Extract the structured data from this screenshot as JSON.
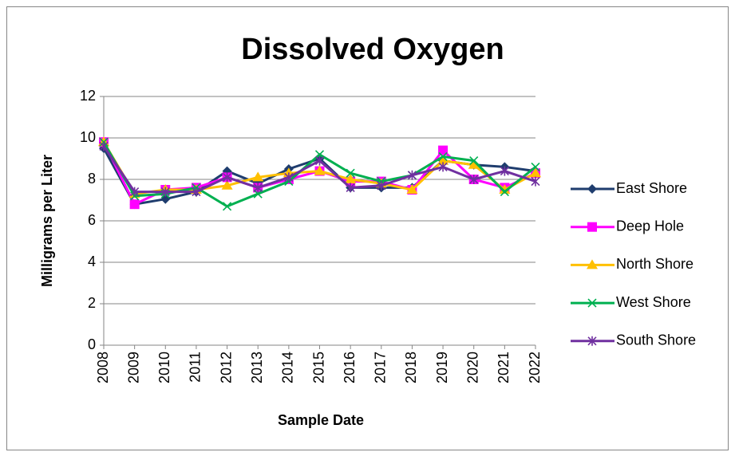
{
  "chart_data": {
    "type": "line",
    "title": "Dissolved Oxygen",
    "x_label": "Sample Date",
    "y_label": "Milligrams per Liter",
    "categories": [
      "2008",
      "2009",
      "2010",
      "2011",
      "2012",
      "2013",
      "2014",
      "2015",
      "2016",
      "2017",
      "2018",
      "2019",
      "2020",
      "2021",
      "2022"
    ],
    "series": [
      {
        "name": "East Shore",
        "color": "#1f3d6e",
        "marker": "diamond",
        "values": [
          9.5,
          6.8,
          7.05,
          7.4,
          8.4,
          7.8,
          8.5,
          9.0,
          7.6,
          7.6,
          7.6,
          8.9,
          8.7,
          8.6,
          8.4
        ]
      },
      {
        "name": "Deep Hole",
        "color": "#ff00ff",
        "marker": "square",
        "values": [
          9.8,
          6.8,
          7.5,
          7.6,
          8.1,
          7.6,
          8.0,
          8.4,
          7.9,
          7.9,
          7.5,
          9.4,
          8.0,
          7.6,
          8.3
        ]
      },
      {
        "name": "North Shore",
        "color": "#ffc000",
        "marker": "triangle",
        "values": [
          9.8,
          7.3,
          7.5,
          7.5,
          7.7,
          8.1,
          8.3,
          8.4,
          8.0,
          7.8,
          7.5,
          8.9,
          8.7,
          7.5,
          8.3
        ]
      },
      {
        "name": "West Shore",
        "color": "#00b050",
        "marker": "x",
        "values": [
          9.8,
          7.2,
          7.3,
          7.6,
          6.7,
          7.3,
          7.9,
          9.2,
          8.3,
          7.9,
          8.2,
          9.1,
          8.9,
          7.4,
          8.6
        ]
      },
      {
        "name": "South Shore",
        "color": "#7030a0",
        "marker": "star",
        "values": [
          9.6,
          7.4,
          7.4,
          7.4,
          8.1,
          7.6,
          8.1,
          8.9,
          7.6,
          7.7,
          8.2,
          8.6,
          8.0,
          8.4,
          7.9
        ]
      }
    ],
    "ylim": [
      0,
      12
    ],
    "yticks": [
      0,
      2,
      4,
      6,
      8,
      10,
      12
    ],
    "grid": true,
    "legend": "right"
  }
}
